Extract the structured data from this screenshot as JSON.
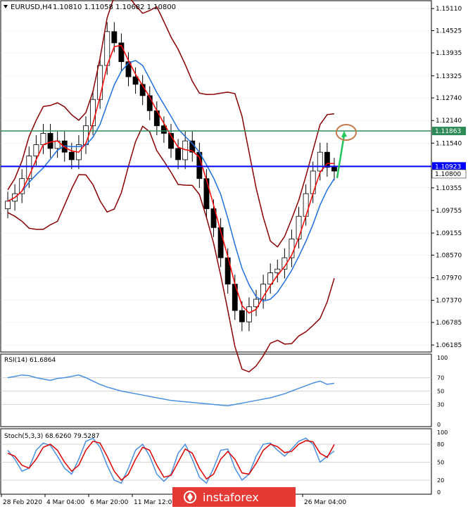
{
  "header": {
    "symbol_label": "EURUSD,H4",
    "ohlc": "1.10810 1.11058 1.10682 1.10800"
  },
  "colors": {
    "candle": "#000000",
    "bollinger": "#8b0000",
    "ma_fast": "#ff0000",
    "ma_slow": "#1e6fe0",
    "hline_blue": "#0000ff",
    "hline_green": "#2e8b57",
    "arrow": "#22c55e",
    "circle": "#c47a4a",
    "rsi_line": "#4a90e2",
    "stoch_main": "#4a90e2",
    "stoch_signal": "#e00000",
    "grid": "#c8c8c8",
    "watermark_bg": "#e53935"
  },
  "chart_data": [
    {
      "type": "candlestick",
      "title": "EURUSD,H4",
      "ylim": [
        1.06,
        1.153
      ],
      "y_ticks": [
        "1.15110",
        "1.14525",
        "1.13935",
        "1.13325",
        "1.12740",
        "1.12140",
        "1.11540",
        "1.10355",
        "1.09755",
        "1.09155",
        "1.08570",
        "1.07970",
        "1.07370",
        "1.06785",
        "1.06185"
      ],
      "x_ticks": [
        "28 Feb 2020",
        "4 Mar 04:00",
        "6 Mar 20:00",
        "11 Mar 12:00",
        "26 Mar 04:00"
      ],
      "price_labels": [
        {
          "value": 1.11863,
          "label": "1.11863",
          "color": "green"
        },
        {
          "value": 1.10923,
          "label": "1.10923",
          "color": "blue"
        },
        {
          "value": 1.108,
          "label": "1.10800",
          "color": "current"
        }
      ],
      "close_series": [
        1.1,
        1.102,
        1.106,
        1.112,
        1.115,
        1.118,
        1.114,
        1.116,
        1.113,
        1.111,
        1.115,
        1.12,
        1.127,
        1.136,
        1.145,
        1.142,
        1.137,
        1.133,
        1.131,
        1.128,
        1.124,
        1.12,
        1.118,
        1.114,
        1.111,
        1.116,
        1.113,
        1.106,
        1.098,
        1.093,
        1.085,
        1.078,
        1.071,
        1.068,
        1.072,
        1.074,
        1.078,
        1.081,
        1.082,
        1.085,
        1.09,
        1.096,
        1.102,
        1.108,
        1.113,
        1.109,
        1.108
      ],
      "annotations": [
        "arrow up to 1.11863 resistance",
        "circle at target"
      ]
    },
    {
      "type": "line",
      "title": "RSI(14) 61.6864",
      "ylim": [
        0,
        100
      ],
      "y_ticks": [
        "100",
        "70",
        "50",
        "30",
        "0"
      ],
      "values": [
        70,
        72,
        74,
        73,
        70,
        68,
        66,
        69,
        70,
        72,
        74,
        70,
        65,
        60,
        56,
        53,
        50,
        48,
        46,
        44,
        42,
        40,
        38,
        36,
        35,
        34,
        33,
        32,
        31,
        30,
        29,
        28,
        30,
        32,
        34,
        36,
        38,
        40,
        43,
        46,
        50,
        54,
        58,
        62,
        65,
        60,
        61.69
      ]
    },
    {
      "type": "line",
      "title": "Stoch(5,3,3) 68.6260 79.5287",
      "ylim": [
        0,
        100
      ],
      "y_ticks": [
        "100",
        "80",
        "50",
        "20",
        "0"
      ],
      "series": [
        {
          "values": [
            70,
            55,
            35,
            40,
            70,
            82,
            78,
            60,
            40,
            30,
            55,
            85,
            90,
            75,
            45,
            20,
            15,
            40,
            70,
            80,
            60,
            30,
            18,
            30,
            65,
            80,
            55,
            25,
            15,
            40,
            70,
            72,
            40,
            20,
            30,
            60,
            80,
            82,
            70,
            60,
            72,
            85,
            90,
            80,
            50,
            60,
            68.63
          ]
        },
        {
          "values": [
            65,
            60,
            45,
            40,
            55,
            75,
            80,
            70,
            50,
            35,
            45,
            70,
            85,
            82,
            60,
            35,
            20,
            30,
            55,
            75,
            70,
            45,
            25,
            28,
            50,
            72,
            65,
            40,
            22,
            30,
            55,
            68,
            55,
            32,
            30,
            48,
            70,
            80,
            76,
            66,
            68,
            80,
            86,
            84,
            65,
            58,
            79.53
          ]
        }
      ]
    }
  ],
  "watermark": {
    "text": "instaforex"
  }
}
